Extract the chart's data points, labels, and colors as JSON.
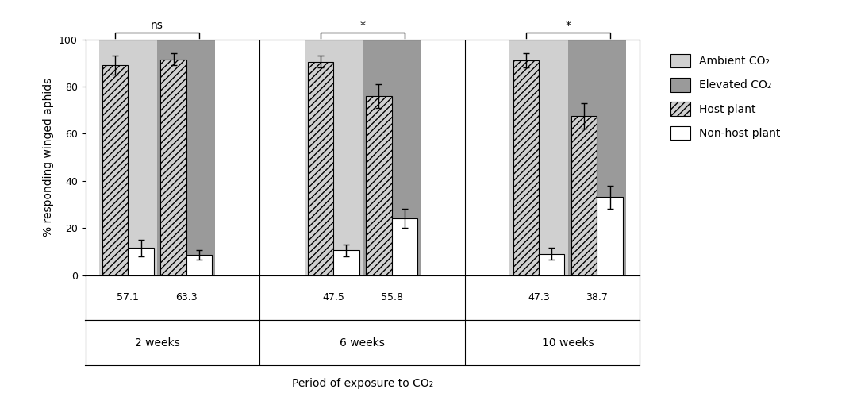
{
  "groups": [
    "2 weeks",
    "6 weeks",
    "10 weeks"
  ],
  "bar_data": {
    "ambient_host": [
      89,
      90.5,
      91
    ],
    "ambient_nonhost": [
      11.5,
      10.5,
      9
    ],
    "elevated_host": [
      91.5,
      76,
      67.5
    ],
    "elevated_nonhost": [
      8.5,
      24,
      33
    ]
  },
  "error_data": {
    "ambient_host": [
      4,
      2.5,
      3
    ],
    "ambient_nonhost": [
      3.5,
      2.5,
      2.5
    ],
    "elevated_host": [
      2.5,
      5,
      5.5
    ],
    "elevated_nonhost": [
      2,
      4,
      5
    ]
  },
  "n_labels": [
    "57.1",
    "63.3",
    "47.5",
    "55.8",
    "47.3",
    "38.7"
  ],
  "significance": [
    "ns",
    "*",
    "*"
  ],
  "ambient_bg_color": "#d0d0d0",
  "elevated_bg_color": "#9a9a9a",
  "ylabel": "% responding winged aphids",
  "xlabel": "Period of exposure to CO₂",
  "ylim": [
    0,
    100
  ],
  "yticks": [
    0,
    20,
    40,
    60,
    80,
    100
  ],
  "legend_labels": [
    "Ambient CO₂",
    "Elevated CO₂",
    "Host plant",
    "Non-host plant"
  ]
}
